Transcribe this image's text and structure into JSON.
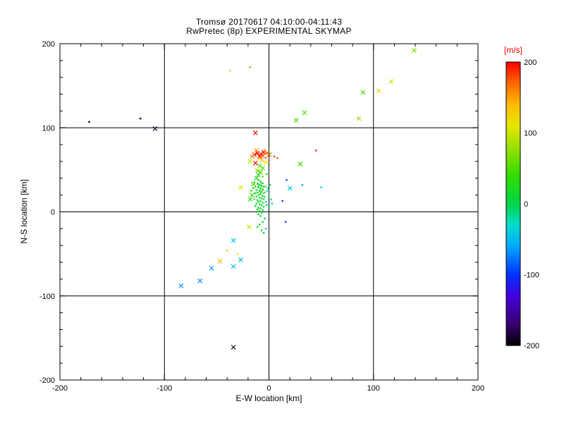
{
  "title": {
    "line1": "Tromsø 20170617 04:10:00-04:11:43",
    "line2": "RwPretec (8p) EXPERIMENTAL SKYMAP"
  },
  "chart_data": {
    "type": "scatter",
    "title": "Tromsø 20170617 04:10:00-04:11:43 / RwPretec (8p) EXPERIMENTAL SKYMAP",
    "xlabel": "E-W location [km]",
    "ylabel": "N-S location [km]",
    "xlim": [
      -200,
      200
    ],
    "ylim": [
      -200,
      200
    ],
    "xticks": [
      -200,
      -100,
      0,
      100,
      200
    ],
    "yticks": [
      -200,
      -100,
      0,
      100,
      200
    ],
    "minor_tick_step": 20,
    "grid": true,
    "grid_color": "#000000",
    "axis_color": "#000000",
    "background": "#ffffff",
    "colorbar": {
      "label": "[m/s]",
      "label_color": "#ff0000",
      "min": -200,
      "max": 200,
      "ticks": [
        200,
        100,
        0,
        -100,
        -200
      ],
      "stops": [
        {
          "v": -200,
          "c": "#000000"
        },
        {
          "v": -170,
          "c": "#3a0070"
        },
        {
          "v": -130,
          "c": "#4400dd"
        },
        {
          "v": -100,
          "c": "#0033ff"
        },
        {
          "v": -60,
          "c": "#00aaff"
        },
        {
          "v": -30,
          "c": "#00ddcc"
        },
        {
          "v": 0,
          "c": "#00d548"
        },
        {
          "v": 40,
          "c": "#33dd00"
        },
        {
          "v": 80,
          "c": "#99e000"
        },
        {
          "v": 110,
          "c": "#e6e600"
        },
        {
          "v": 140,
          "c": "#ffbb00"
        },
        {
          "v": 170,
          "c": "#ff6600"
        },
        {
          "v": 200,
          "c": "#ff0000"
        }
      ]
    },
    "marker_key": {
      "0": "dot",
      "1": "x-cross"
    },
    "points": [
      [
        -172,
        107,
        -195,
        0
      ],
      [
        -123,
        111,
        -200,
        0
      ],
      [
        -109,
        99,
        -185,
        1
      ],
      [
        -34,
        -161,
        -190,
        1
      ],
      [
        139,
        192,
        65,
        1
      ],
      [
        117,
        155,
        100,
        1
      ],
      [
        105,
        144,
        120,
        1
      ],
      [
        90,
        142,
        50,
        1
      ],
      [
        86,
        111,
        80,
        1
      ],
      [
        -18,
        172,
        50,
        0
      ],
      [
        -37,
        168,
        105,
        0
      ],
      [
        34,
        118,
        55,
        1
      ],
      [
        26,
        109,
        45,
        1
      ],
      [
        -13,
        94,
        195,
        1
      ],
      [
        45,
        73,
        190,
        0
      ],
      [
        -14,
        68,
        190,
        1
      ],
      [
        -11,
        70,
        200,
        1
      ],
      [
        -8,
        69,
        180,
        1
      ],
      [
        -5,
        71,
        195,
        1
      ],
      [
        -2,
        70,
        170,
        1
      ],
      [
        -16,
        66,
        160,
        1
      ],
      [
        -9,
        66,
        200,
        1
      ],
      [
        -6,
        67,
        185,
        1
      ],
      [
        -12,
        73,
        150,
        1
      ],
      [
        -4,
        74,
        130,
        0
      ],
      [
        0,
        68,
        175,
        1
      ],
      [
        2,
        70,
        90,
        0
      ],
      [
        -10,
        63,
        120,
        0
      ],
      [
        -7,
        62,
        140,
        1
      ],
      [
        -3,
        64,
        160,
        0
      ],
      [
        5,
        66,
        185,
        0
      ],
      [
        8,
        64,
        175,
        0
      ],
      [
        -13,
        58,
        200,
        1
      ],
      [
        -3,
        59,
        110,
        1
      ],
      [
        -18,
        60,
        95,
        1
      ],
      [
        -9,
        55,
        60,
        1
      ],
      [
        -6,
        52,
        45,
        1
      ],
      [
        -11,
        49,
        70,
        1
      ],
      [
        -8,
        47,
        55,
        1
      ],
      [
        30,
        57,
        40,
        1
      ],
      [
        -27,
        29,
        110,
        1
      ],
      [
        17,
        38,
        -90,
        0
      ],
      [
        13,
        13,
        -100,
        0
      ],
      [
        32,
        32,
        -60,
        0
      ],
      [
        16,
        -12,
        -95,
        0
      ],
      [
        20,
        28,
        -40,
        1
      ],
      [
        50,
        29,
        -35,
        0
      ],
      [
        -10,
        44,
        30,
        1
      ],
      [
        -6,
        42,
        50,
        0
      ],
      [
        -2,
        45,
        20,
        0
      ],
      [
        -12,
        40,
        20,
        1
      ],
      [
        -10,
        38,
        35,
        0
      ],
      [
        -8,
        36,
        10,
        0
      ],
      [
        -14,
        35,
        5,
        0
      ],
      [
        -6,
        34,
        25,
        0
      ],
      [
        -11,
        33,
        40,
        0
      ],
      [
        -9,
        32,
        15,
        1
      ],
      [
        -7,
        31,
        0,
        0
      ],
      [
        -13,
        30,
        30,
        0
      ],
      [
        -5,
        30,
        20,
        0
      ],
      [
        -10,
        29,
        -10,
        0
      ],
      [
        -8,
        28,
        12,
        0
      ],
      [
        -15,
        28,
        22,
        0
      ],
      [
        -6,
        27,
        35,
        0
      ],
      [
        -12,
        26,
        18,
        0
      ],
      [
        -9,
        25,
        8,
        0
      ],
      [
        -7,
        24,
        28,
        1
      ],
      [
        -11,
        23,
        15,
        0
      ],
      [
        -4,
        23,
        45,
        0
      ],
      [
        -13,
        22,
        5,
        0
      ],
      [
        -8,
        21,
        20,
        0
      ],
      [
        -10,
        20,
        30,
        0
      ],
      [
        -6,
        19,
        10,
        0
      ],
      [
        -12,
        18,
        25,
        0
      ],
      [
        -9,
        17,
        15,
        0
      ],
      [
        -7,
        16,
        0,
        0
      ],
      [
        -14,
        15,
        20,
        0
      ],
      [
        -5,
        15,
        35,
        0
      ],
      [
        -11,
        14,
        10,
        0
      ],
      [
        -8,
        13,
        22,
        0
      ],
      [
        -10,
        12,
        18,
        0
      ],
      [
        -6,
        11,
        5,
        0
      ],
      [
        -12,
        10,
        28,
        0
      ],
      [
        -9,
        9,
        12,
        0
      ],
      [
        -7,
        8,
        20,
        0
      ],
      [
        -13,
        7,
        8,
        0
      ],
      [
        -5,
        6,
        15,
        0
      ],
      [
        -10,
        5,
        25,
        0
      ],
      [
        -8,
        4,
        10,
        0
      ],
      [
        -11,
        3,
        18,
        0
      ],
      [
        -6,
        2,
        5,
        0
      ],
      [
        -9,
        1,
        22,
        0
      ],
      [
        -12,
        0,
        12,
        0
      ],
      [
        -7,
        -1,
        8,
        0
      ],
      [
        -10,
        -3,
        15,
        0
      ],
      [
        -8,
        -5,
        20,
        0
      ],
      [
        -4,
        18,
        -20,
        0
      ],
      [
        -3,
        12,
        -15,
        0
      ],
      [
        -2,
        25,
        -25,
        0
      ],
      [
        0,
        20,
        -10,
        0
      ],
      [
        2,
        15,
        -20,
        0
      ],
      [
        -16,
        20,
        40,
        1
      ],
      [
        -18,
        15,
        30,
        1
      ],
      [
        -3,
        30,
        55,
        0
      ],
      [
        -1,
        28,
        -30,
        0
      ],
      [
        1,
        32,
        -15,
        0
      ],
      [
        -15,
        33,
        45,
        1
      ],
      [
        -17,
        25,
        25,
        0
      ],
      [
        -2,
        8,
        -10,
        0
      ],
      [
        0,
        5,
        10,
        0
      ],
      [
        3,
        10,
        -25,
        0
      ],
      [
        -4,
        -8,
        0,
        0
      ],
      [
        -6,
        -12,
        15,
        0
      ],
      [
        -9,
        -15,
        25,
        0
      ],
      [
        -11,
        -18,
        10,
        0
      ],
      [
        -3,
        -20,
        -10,
        0
      ],
      [
        -7,
        -22,
        30,
        0
      ],
      [
        -5,
        -25,
        5,
        0
      ],
      [
        -19,
        -18,
        100,
        1
      ],
      [
        -34,
        -34,
        -45,
        1
      ],
      [
        -40,
        -46,
        130,
        0
      ],
      [
        -30,
        -50,
        120,
        0
      ],
      [
        -27,
        -57,
        -50,
        1
      ],
      [
        -47,
        -59,
        140,
        1
      ],
      [
        -34,
        -65,
        -55,
        1
      ],
      [
        -55,
        -67,
        -60,
        1
      ],
      [
        -66,
        -82,
        -70,
        1
      ],
      [
        -84,
        -88,
        -65,
        1
      ]
    ]
  }
}
